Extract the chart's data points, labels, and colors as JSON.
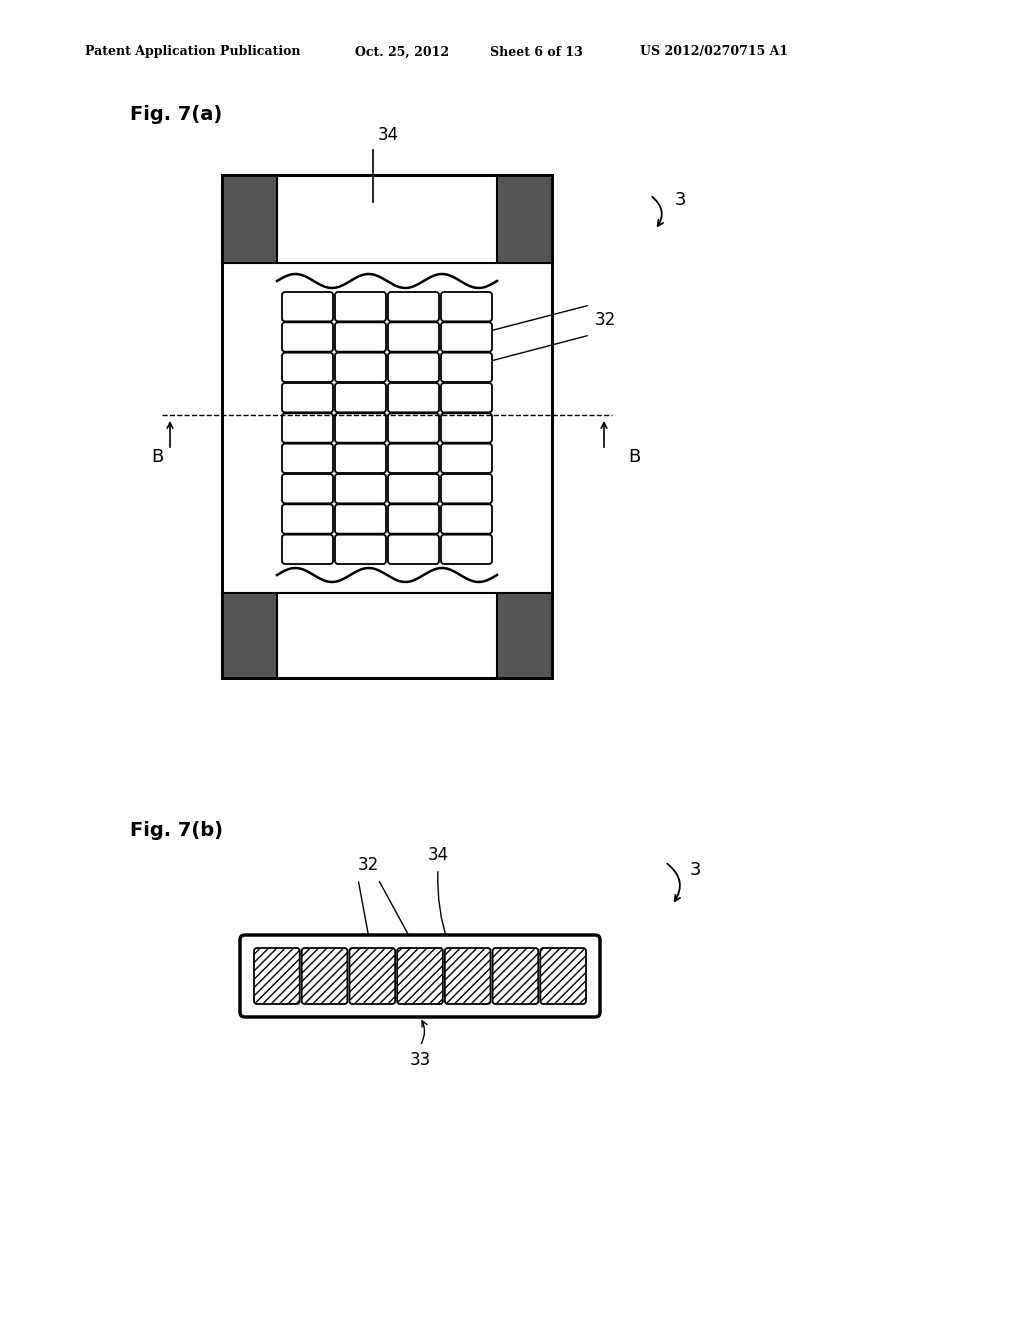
{
  "bg_color": "#ffffff",
  "header_text": "Patent Application Publication",
  "header_date": "Oct. 25, 2012",
  "header_sheet": "Sheet 6 of 13",
  "header_patent": "US 2012/0270715 A1",
  "fig_a_label": "Fig. 7(a)",
  "fig_b_label": "Fig. 7(b)",
  "rows": 9,
  "cols": 4,
  "fig_b_cells": 7
}
